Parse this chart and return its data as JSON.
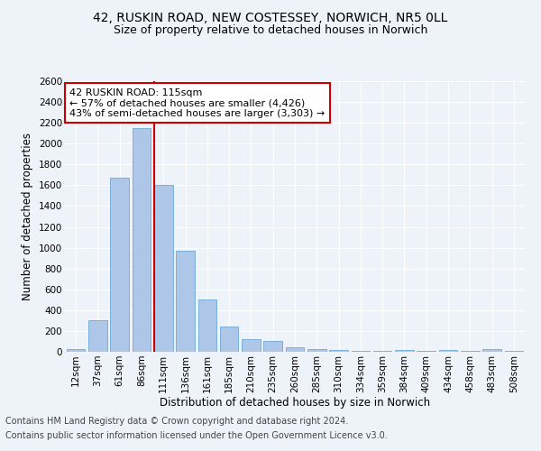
{
  "title1": "42, RUSKIN ROAD, NEW COSTESSEY, NORWICH, NR5 0LL",
  "title2": "Size of property relative to detached houses in Norwich",
  "xlabel": "Distribution of detached houses by size in Norwich",
  "ylabel": "Number of detached properties",
  "categories": [
    "12sqm",
    "37sqm",
    "61sqm",
    "86sqm",
    "111sqm",
    "136sqm",
    "161sqm",
    "185sqm",
    "210sqm",
    "235sqm",
    "260sqm",
    "285sqm",
    "310sqm",
    "334sqm",
    "359sqm",
    "384sqm",
    "409sqm",
    "434sqm",
    "458sqm",
    "483sqm",
    "508sqm"
  ],
  "values": [
    22,
    300,
    1670,
    2150,
    1600,
    970,
    500,
    247,
    120,
    100,
    45,
    30,
    18,
    10,
    8,
    20,
    8,
    20,
    5,
    22,
    5
  ],
  "bar_color": "#aec6e8",
  "bar_edge_color": "#5a9fd4",
  "highlight_index": 4,
  "vline_color": "#cc0000",
  "annotation_line1": "42 RUSKIN ROAD: 115sqm",
  "annotation_line2": "← 57% of detached houses are smaller (4,426)",
  "annotation_line3": "43% of semi-detached houses are larger (3,303) →",
  "annotation_box_color": "#ffffff",
  "annotation_box_edge_color": "#cc0000",
  "ylim": [
    0,
    2600
  ],
  "yticks": [
    0,
    200,
    400,
    600,
    800,
    1000,
    1200,
    1400,
    1600,
    1800,
    2000,
    2200,
    2400,
    2600
  ],
  "footer1": "Contains HM Land Registry data © Crown copyright and database right 2024.",
  "footer2": "Contains public sector information licensed under the Open Government Licence v3.0.",
  "bg_color": "#eef2f9",
  "grid_color": "#ffffff",
  "title1_fontsize": 10,
  "title2_fontsize": 9,
  "axis_label_fontsize": 8.5,
  "tick_fontsize": 7.5,
  "annotation_fontsize": 8,
  "footer_fontsize": 7
}
